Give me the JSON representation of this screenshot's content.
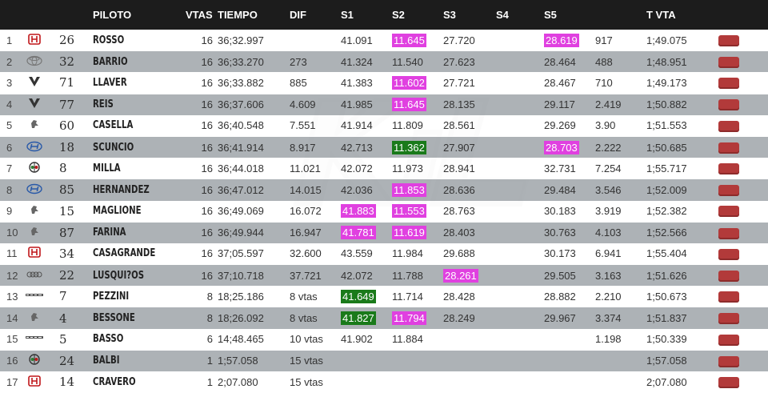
{
  "header": {
    "piloto": "PILOTO",
    "vtas": "VTAS",
    "tiempo": "TIEMPO",
    "dif": "DIF",
    "s1": "S1",
    "s2": "S2",
    "s3": "S3",
    "s4": "S4",
    "s5": "S5",
    "tvta": "T VTA"
  },
  "rows": [
    {
      "pos": "1",
      "brand": "honda",
      "num": "26",
      "piloto": "ROSSO",
      "vtas": "16",
      "tiempo": "36;32.997",
      "dif": "",
      "s1": "41.091",
      "s2": "11.645",
      "s3": "27.720",
      "s4": "",
      "s5": "28.619",
      "gap": "917",
      "tvta": "1;49.075"
    },
    {
      "pos": "2",
      "brand": "toyota",
      "num": "32",
      "piloto": "BARRIO",
      "vtas": "16",
      "tiempo": "36;33.270",
      "dif": "273",
      "s1": "41.324",
      "s2": "11.540",
      "s3": "27.623",
      "s4": "",
      "s5": "28.464",
      "gap": "488",
      "tvta": "1;48.951"
    },
    {
      "pos": "3",
      "brand": "cupra",
      "num": "71",
      "piloto": "LLAVER",
      "vtas": "16",
      "tiempo": "36;33.882",
      "dif": "885",
      "s1": "41.383",
      "s2": "11.602",
      "s3": "27.721",
      "s4": "",
      "s5": "28.467",
      "gap": "710",
      "tvta": "1;49.173"
    },
    {
      "pos": "4",
      "brand": "cupra",
      "num": "77",
      "piloto": "REIS",
      "vtas": "16",
      "tiempo": "36;37.606",
      "dif": "4.609",
      "s1": "41.985",
      "s2": "11.645",
      "s3": "28.135",
      "s4": "",
      "s5": "29.117",
      "gap": "2.419",
      "tvta": "1;50.882"
    },
    {
      "pos": "5",
      "brand": "peugeot",
      "num": "60",
      "piloto": "CASELLA",
      "vtas": "16",
      "tiempo": "36;40.548",
      "dif": "7.551",
      "s1": "41.914",
      "s2": "11.809",
      "s3": "28.561",
      "s4": "",
      "s5": "29.269",
      "gap": "3.90",
      "tvta": "1;51.553"
    },
    {
      "pos": "6",
      "brand": "hyundai",
      "num": "18",
      "piloto": "SCUNCIO",
      "vtas": "16",
      "tiempo": "36;41.914",
      "dif": "8.917",
      "s1": "42.713",
      "s2": "11.362",
      "s3": "27.907",
      "s4": "",
      "s5": "28.703",
      "gap": "2.222",
      "tvta": "1;50.685"
    },
    {
      "pos": "7",
      "brand": "alfa",
      "num": "8",
      "piloto": "MILLA",
      "vtas": "16",
      "tiempo": "36;44.018",
      "dif": "11.021",
      "s1": "42.072",
      "s2": "11.973",
      "s3": "28.941",
      "s4": "",
      "s5": "32.731",
      "gap": "7.254",
      "tvta": "1;55.717"
    },
    {
      "pos": "8",
      "brand": "hyundai",
      "num": "85",
      "piloto": "HERNANDEZ",
      "vtas": "16",
      "tiempo": "36;47.012",
      "dif": "14.015",
      "s1": "42.036",
      "s2": "11.853",
      "s3": "28.636",
      "s4": "",
      "s5": "29.484",
      "gap": "3.546",
      "tvta": "1;52.009"
    },
    {
      "pos": "9",
      "brand": "peugeot",
      "num": "15",
      "piloto": "MAGLIONE",
      "vtas": "16",
      "tiempo": "36;49.069",
      "dif": "16.072",
      "s1": "41.883",
      "s2": "11.553",
      "s3": "28.763",
      "s4": "",
      "s5": "30.183",
      "gap": "3.919",
      "tvta": "1;52.382"
    },
    {
      "pos": "10",
      "brand": "peugeot",
      "num": "87",
      "piloto": "FARINA",
      "vtas": "16",
      "tiempo": "36;49.944",
      "dif": "16.947",
      "s1": "41.781",
      "s2": "11.619",
      "s3": "28.403",
      "s4": "",
      "s5": "30.763",
      "gap": "4.103",
      "tvta": "1;52.566"
    },
    {
      "pos": "11",
      "brand": "honda",
      "num": "34",
      "piloto": "CASAGRANDE",
      "vtas": "16",
      "tiempo": "37;05.597",
      "dif": "32.600",
      "s1": "43.559",
      "s2": "11.984",
      "s3": "29.688",
      "s4": "",
      "s5": "30.173",
      "gap": "6.941",
      "tvta": "1;55.404"
    },
    {
      "pos": "12",
      "brand": "audi",
      "num": "22",
      "piloto": "LUSQUI?OS",
      "vtas": "16",
      "tiempo": "37;10.718",
      "dif": "37.721",
      "s1": "42.072",
      "s2": "11.788",
      "s3": "28.261",
      "s4": "",
      "s5": "29.505",
      "gap": "3.163",
      "tvta": "1;51.626"
    },
    {
      "pos": "13",
      "brand": "lynkco",
      "num": "7",
      "piloto": "PEZZINI",
      "vtas": "8",
      "tiempo": "18;25.186",
      "dif": "8 vtas",
      "s1": "41.649",
      "s2": "11.714",
      "s3": "28.428",
      "s4": "",
      "s5": "28.882",
      "gap": "2.210",
      "tvta": "1;50.673"
    },
    {
      "pos": "14",
      "brand": "peugeot",
      "num": "4",
      "piloto": "BESSONE",
      "vtas": "8",
      "tiempo": "18;26.092",
      "dif": "8 vtas",
      "s1": "41.827",
      "s2": "11.794",
      "s3": "28.249",
      "s4": "",
      "s5": "29.967",
      "gap": "3.374",
      "tvta": "1;51.837"
    },
    {
      "pos": "15",
      "brand": "lynkco",
      "num": "5",
      "piloto": "BASSO",
      "vtas": "6",
      "tiempo": "14;48.465",
      "dif": "10 vtas",
      "s1": "41.902",
      "s2": "11.884",
      "s3": "",
      "s4": "",
      "s5": "",
      "gap": "1.198",
      "tvta": "1;50.339"
    },
    {
      "pos": "16",
      "brand": "alfa",
      "num": "24",
      "piloto": "BALBI",
      "vtas": "1",
      "tiempo": "1;57.058",
      "dif": "15 vtas",
      "s1": "",
      "s2": "",
      "s3": "",
      "s4": "",
      "s5": "",
      "gap": "",
      "tvta": "1;57.058"
    },
    {
      "pos": "17",
      "brand": "honda",
      "num": "14",
      "piloto": "CRAVERO",
      "vtas": "1",
      "tiempo": "2;07.080",
      "dif": "15 vtas",
      "s1": "",
      "s2": "",
      "s3": "",
      "s4": "",
      "s5": "",
      "gap": "",
      "tvta": "2;07.080"
    }
  ],
  "highlights": {
    "2-0": "pink",
    "2-3": "pink",
    "2-8": "pink",
    "2-2": "pink",
    "2-5": "green",
    "5-5": "pink",
    "2-7": "pink",
    "1-8": "pink",
    "2-8b": "pink",
    "1-9": "pink",
    "2-9": "pink",
    "3-11": "pink",
    "1-12": "green",
    "1-13": "green",
    "2-13": "pink"
  },
  "colors": {
    "header_bg": "#1c1c1c",
    "row_odd": "#ffffff",
    "row_even": "#a6abb0",
    "best_sector": "#e040e0",
    "best_overall": "#1a7a1a",
    "button": "#b23a3a"
  }
}
